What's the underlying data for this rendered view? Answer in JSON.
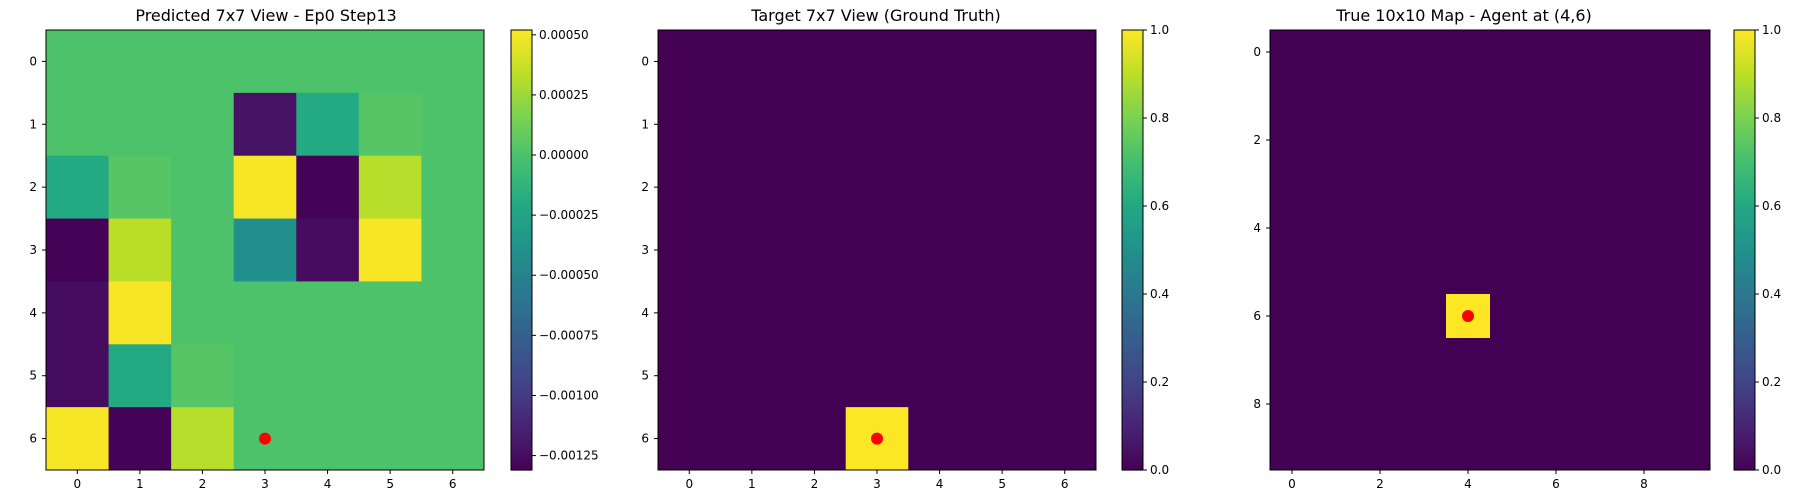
{
  "chart_data": [
    {
      "type": "heatmap",
      "title": "Predicted 7x7 View - Ep0 Step13",
      "xlabel": "",
      "ylabel": "",
      "x_ticks": [
        "0",
        "1",
        "2",
        "3",
        "4",
        "5",
        "6"
      ],
      "y_ticks": [
        "0",
        "1",
        "2",
        "3",
        "4",
        "5",
        "6"
      ],
      "xlim": [
        -0.5,
        6.5
      ],
      "ylim": [
        6.5,
        -0.5
      ],
      "values": [
        [
          0.0,
          0.0,
          0.0,
          0.0,
          0.0,
          0.0,
          0.0
        ],
        [
          0.0,
          0.0,
          0.0,
          -0.00122,
          -0.0002,
          3e-05,
          0.0
        ],
        [
          -0.0002,
          3e-05,
          0.0,
          0.0005,
          -0.0013,
          0.00032,
          0.0
        ],
        [
          -0.0013,
          0.00033,
          0.0,
          -0.0004,
          -0.00125,
          0.0005,
          0.0
        ],
        [
          -0.00125,
          0.0005,
          0.0,
          0.0,
          0.0,
          0.0,
          0.0
        ],
        [
          -0.00125,
          -0.0002,
          3e-05,
          0.0,
          0.0,
          0.0,
          0.0
        ],
        [
          0.0005,
          -0.0013,
          0.00032,
          0.0,
          0.0,
          0.0,
          0.0
        ]
      ],
      "vmin": -0.00131,
      "vmax": 0.00052,
      "colormap": "viridis",
      "colorbar_ticks": [
        "0.00050",
        "0.00025",
        "0.00000",
        "−0.00025",
        "−0.00050",
        "−0.00075",
        "−0.00100",
        "−0.00125"
      ],
      "colorbar_tick_values": [
        0.0005,
        0.00025,
        0.0,
        -0.00025,
        -0.0005,
        -0.00075,
        -0.001,
        -0.00125
      ],
      "agent_marker": {
        "x": 3,
        "y": 6,
        "color": "#ff0000"
      }
    },
    {
      "type": "heatmap",
      "title": "Target 7x7 View (Ground Truth)",
      "xlabel": "",
      "ylabel": "",
      "x_ticks": [
        "0",
        "1",
        "2",
        "3",
        "4",
        "5",
        "6"
      ],
      "y_ticks": [
        "0",
        "1",
        "2",
        "3",
        "4",
        "5",
        "6"
      ],
      "xlim": [
        -0.5,
        6.5
      ],
      "ylim": [
        6.5,
        -0.5
      ],
      "values": [
        [
          0,
          0,
          0,
          0,
          0,
          0,
          0
        ],
        [
          0,
          0,
          0,
          0,
          0,
          0,
          0
        ],
        [
          0,
          0,
          0,
          0,
          0,
          0,
          0
        ],
        [
          0,
          0,
          0,
          0,
          0,
          0,
          0
        ],
        [
          0,
          0,
          0,
          0,
          0,
          0,
          0
        ],
        [
          0,
          0,
          0,
          0,
          0,
          0,
          0
        ],
        [
          0,
          0,
          0,
          1,
          0,
          0,
          0
        ]
      ],
      "vmin": 0,
      "vmax": 1,
      "colormap": "viridis",
      "colorbar_ticks": [
        "1.0",
        "0.8",
        "0.6",
        "0.4",
        "0.2",
        "0.0"
      ],
      "colorbar_tick_values": [
        1.0,
        0.8,
        0.6,
        0.4,
        0.2,
        0.0
      ],
      "agent_marker": {
        "x": 3,
        "y": 6,
        "color": "#ff0000"
      }
    },
    {
      "type": "heatmap",
      "title": "True 10x10 Map - Agent at (4,6)",
      "xlabel": "",
      "ylabel": "",
      "x_ticks": [
        "0",
        "2",
        "4",
        "6",
        "8"
      ],
      "y_ticks": [
        "0",
        "2",
        "4",
        "6",
        "8"
      ],
      "xlim": [
        -0.5,
        9.5
      ],
      "ylim": [
        9.5,
        -0.5
      ],
      "values": [
        [
          0,
          0,
          0,
          0,
          0,
          0,
          0,
          0,
          0,
          0
        ],
        [
          0,
          0,
          0,
          0,
          0,
          0,
          0,
          0,
          0,
          0
        ],
        [
          0,
          0,
          0,
          0,
          0,
          0,
          0,
          0,
          0,
          0
        ],
        [
          0,
          0,
          0,
          0,
          0,
          0,
          0,
          0,
          0,
          0
        ],
        [
          0,
          0,
          0,
          0,
          0,
          0,
          0,
          0,
          0,
          0
        ],
        [
          0,
          0,
          0,
          0,
          0,
          0,
          0,
          0,
          0,
          0
        ],
        [
          0,
          0,
          0,
          0,
          1,
          0,
          0,
          0,
          0,
          0
        ],
        [
          0,
          0,
          0,
          0,
          0,
          0,
          0,
          0,
          0,
          0
        ],
        [
          0,
          0,
          0,
          0,
          0,
          0,
          0,
          0,
          0,
          0
        ],
        [
          0,
          0,
          0,
          0,
          0,
          0,
          0,
          0,
          0,
          0
        ]
      ],
      "vmin": 0,
      "vmax": 1,
      "colormap": "viridis",
      "colorbar_ticks": [
        "1.0",
        "0.8",
        "0.6",
        "0.4",
        "0.2",
        "0.0"
      ],
      "colorbar_tick_values": [
        1.0,
        0.8,
        0.6,
        0.4,
        0.2,
        0.0
      ],
      "agent_marker": {
        "x": 4,
        "y": 6,
        "color": "#ff0000"
      }
    }
  ]
}
